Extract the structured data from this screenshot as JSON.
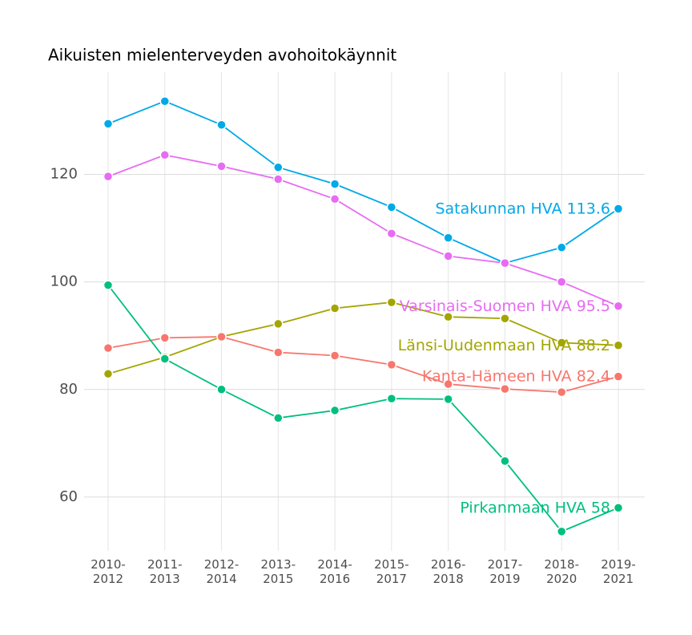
{
  "chart_data": {
    "type": "line",
    "title": "Aikuisten mielenterveyden avohoitokäynnit",
    "categories": [
      "2010-2012",
      "2011-2013",
      "2012-2014",
      "2013-2015",
      "2014-2016",
      "2015-2017",
      "2016-2018",
      "2017-2019",
      "2018-2020",
      "2019-2021"
    ],
    "ylim": [
      50,
      139
    ],
    "yticks": [
      60,
      80,
      100,
      120
    ],
    "grid": true,
    "series": [
      {
        "name": "Satakunnan HVA",
        "color": "#00a9e8",
        "values": [
          129.4,
          133.6,
          129.2,
          121.3,
          118.2,
          113.9,
          108.2,
          103.5,
          106.4,
          113.6
        ]
      },
      {
        "name": "Varsinais-Suomen HVA",
        "color": "#e76bf3",
        "values": [
          119.6,
          123.6,
          121.5,
          119.1,
          115.4,
          109.0,
          104.8,
          103.5,
          100.0,
          95.5
        ]
      },
      {
        "name": "Länsi-Uudenmaan HVA",
        "color": "#a3a500",
        "values": [
          82.9,
          86.0,
          89.8,
          92.2,
          95.1,
          96.2,
          93.5,
          93.2,
          88.7,
          88.2
        ]
      },
      {
        "name": "Kanta-Hämeen HVA",
        "color": "#f8766d",
        "values": [
          87.7,
          89.6,
          89.8,
          86.9,
          86.3,
          84.6,
          81.0,
          80.1,
          79.5,
          82.4
        ]
      },
      {
        "name": "Pirkanmaan HVA",
        "color": "#00bf7d",
        "values": [
          99.4,
          85.7,
          80.0,
          74.7,
          76.1,
          78.3,
          78.2,
          66.7,
          53.6,
          58
        ]
      }
    ]
  }
}
